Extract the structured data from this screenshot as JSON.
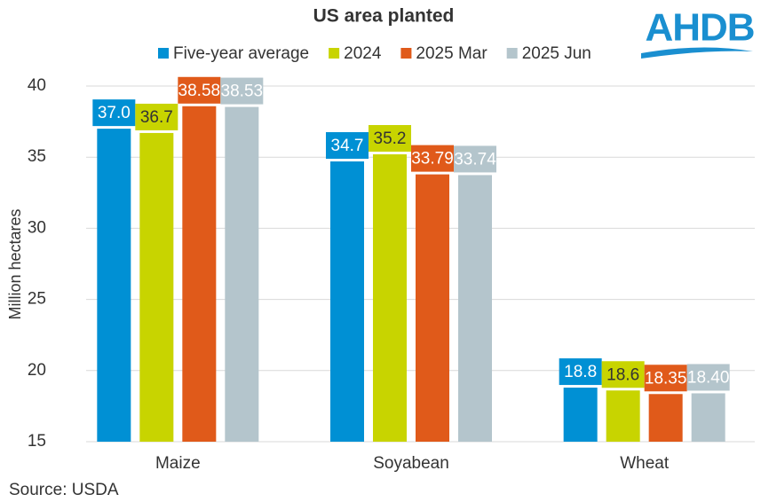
{
  "chart_data": {
    "type": "bar",
    "title": "US area planted",
    "categories": [
      "Maize",
      "Soyabean",
      "Wheat"
    ],
    "series": [
      {
        "name": "Five-year average",
        "color": "#0090d4",
        "values": [
          37.0,
          34.7,
          18.8
        ],
        "value_labels": [
          "37.0",
          "34.7",
          "18.8"
        ]
      },
      {
        "name": "2024",
        "color": "#c8d400",
        "values": [
          36.7,
          35.2,
          18.6
        ]
      },
      {
        "name": "2025 Mar",
        "color": "#e05a1a",
        "values": [
          38.58,
          33.79,
          18.35
        ]
      },
      {
        "name": "2025 Jun",
        "color": "#b4c5cc",
        "values": [
          38.53,
          33.74,
          18.4
        ],
        "value_labels": [
          "38.53",
          "33.74",
          "18.40"
        ]
      }
    ],
    "y_label": "Million hectares",
    "ylim": [
      15,
      40
    ],
    "yticks": [
      15,
      20,
      25,
      30,
      35,
      40
    ],
    "grid": true,
    "legend": "top",
    "source": "Source: USDA",
    "logo": "AHDB"
  }
}
